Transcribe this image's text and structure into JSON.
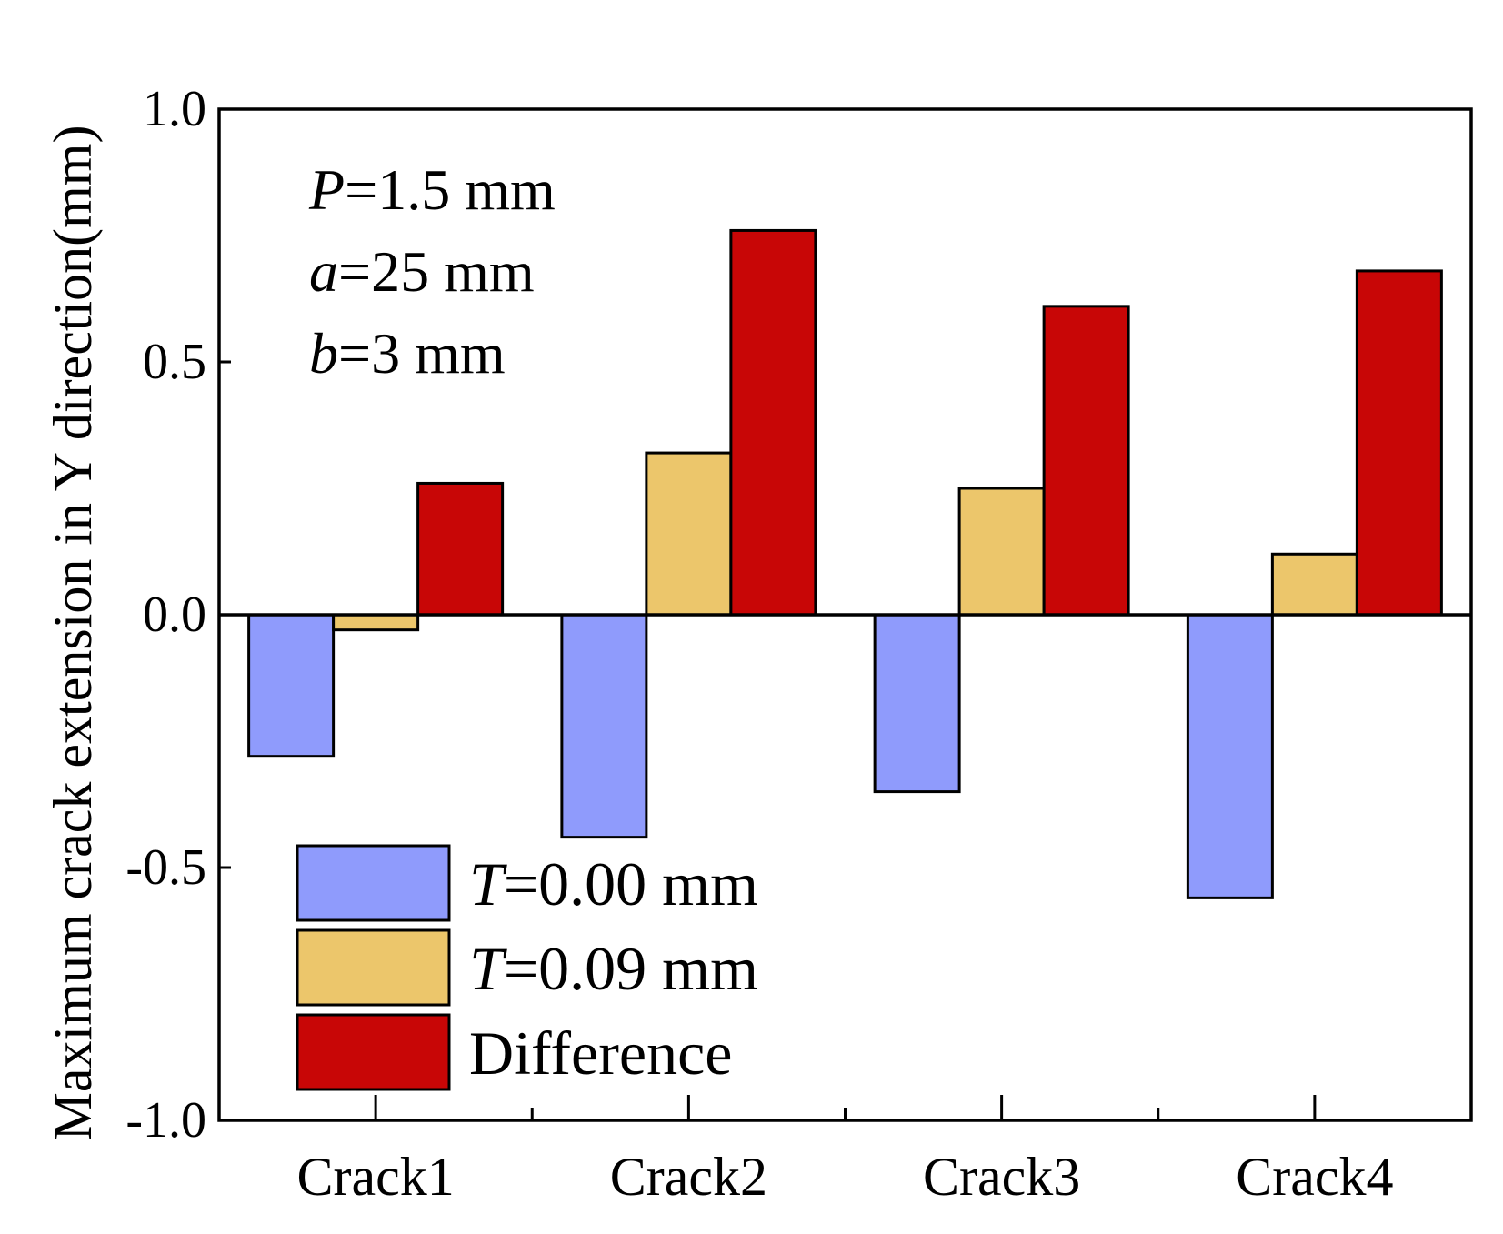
{
  "chart_data": {
    "type": "bar",
    "title": "",
    "xlabel": "",
    "ylabel": "Maximum crack extension in Y direction(mm)",
    "categories": [
      "Crack1",
      "Crack2",
      "Crack3",
      "Crack4"
    ],
    "ylim": [
      -1.0,
      1.0
    ],
    "yticks": [
      -1.0,
      -0.5,
      0.0,
      0.5,
      1.0
    ],
    "ytick_labels": [
      "-1.0",
      "-0.5",
      "0.0",
      "0.5",
      "1.0"
    ],
    "grid": false,
    "legend_position": "bottom-left",
    "series": [
      {
        "name": "T=0.00 mm",
        "var": "T",
        "rest": "=0.00 mm",
        "color": "#8f9bfc",
        "values": [
          -0.28,
          -0.44,
          -0.35,
          -0.56
        ]
      },
      {
        "name": "T=0.09 mm",
        "var": "T",
        "rest": "=0.09 mm",
        "color": "#ecc66b",
        "values": [
          -0.03,
          0.32,
          0.25,
          0.12
        ]
      },
      {
        "name": "Difference",
        "var": "",
        "rest": "Difference",
        "color": "#c80606",
        "values": [
          0.26,
          0.76,
          0.61,
          0.68
        ]
      }
    ],
    "annotations": [
      {
        "var": "P",
        "rest": "=1.5 mm"
      },
      {
        "var": "a",
        "rest": "=25 mm"
      },
      {
        "var": "b",
        "rest": "=3 mm"
      }
    ]
  }
}
